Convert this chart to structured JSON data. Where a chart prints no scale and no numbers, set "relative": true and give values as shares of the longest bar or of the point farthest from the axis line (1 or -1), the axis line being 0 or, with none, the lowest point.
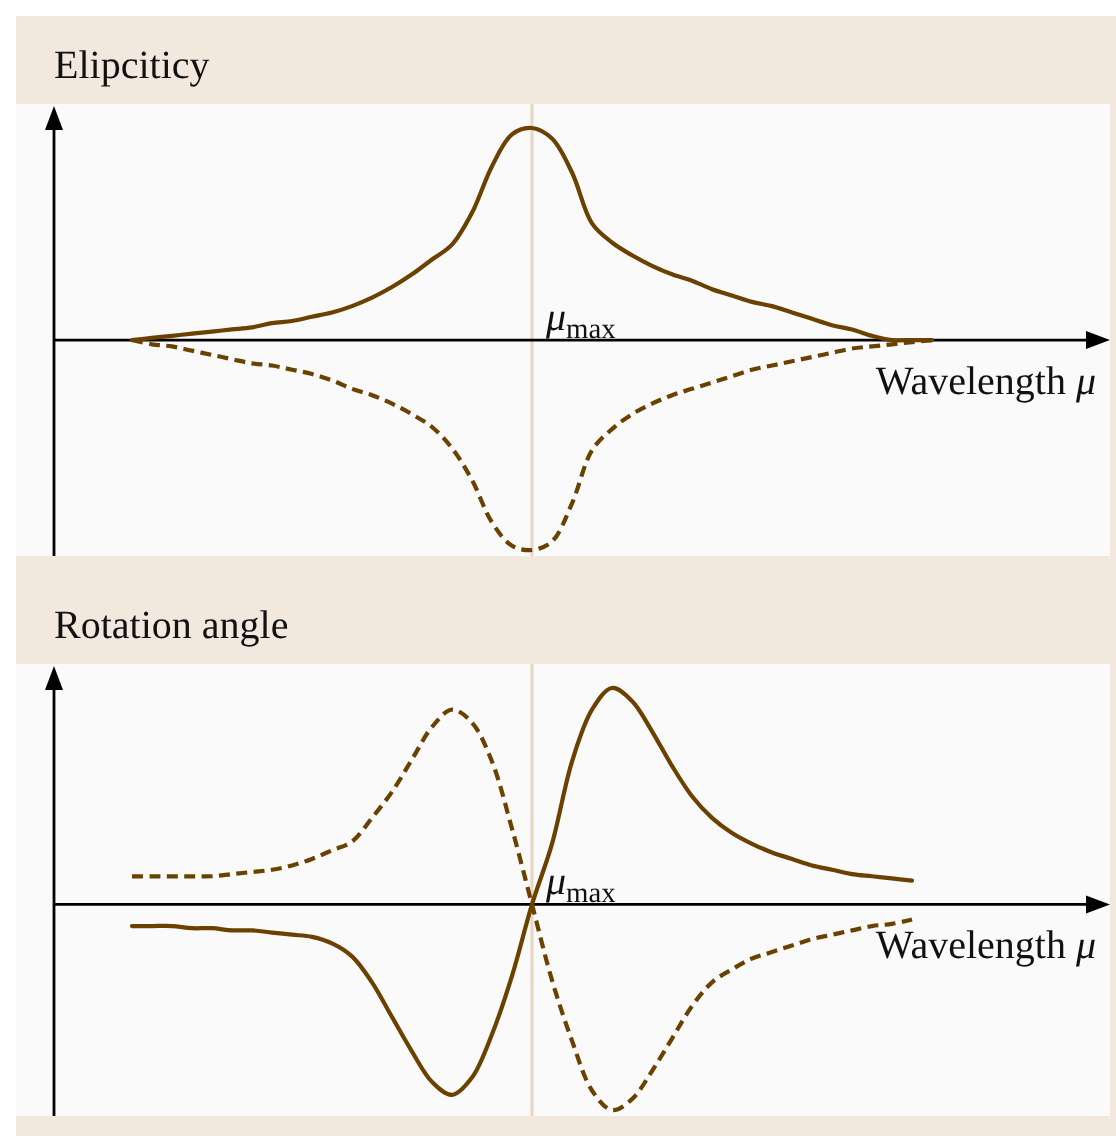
{
  "chart_data": [
    {
      "type": "line",
      "title": "Elipciticy",
      "xlabel": "Wavelength μ",
      "relative": true,
      "categories": [
        null,
        null,
        null,
        null,
        null,
        null,
        null,
        null,
        null,
        null,
        null,
        null,
        null,
        null,
        null,
        null,
        null,
        null,
        null,
        null,
        null,
        null,
        null,
        null,
        null,
        null,
        null,
        null,
        null,
        null,
        null,
        null,
        null,
        null,
        null,
        null,
        null,
        null,
        null,
        null,
        null
      ],
      "series": [
        {
          "color": "#6b4100",
          "line_style": "solid",
          "values": [
            0,
            0.01,
            0.02,
            0.03,
            0.04,
            0.05,
            0.06,
            0.08,
            0.09,
            0.11,
            0.13,
            0.16,
            0.2,
            0.25,
            0.31,
            0.38,
            0.45,
            0.6,
            0.82,
            0.97,
            1,
            0.95,
            0.79,
            0.55,
            0.46,
            0.4,
            0.35,
            0.31,
            0.28,
            0.24,
            0.21,
            0.18,
            0.16,
            0.13,
            0.1,
            0.07,
            0.05,
            0.02,
            0,
            0,
            0
          ]
        },
        {
          "color": "#6b4100",
          "line_style": "dashed",
          "values": [
            0,
            -0.02,
            -0.03,
            -0.05,
            -0.07,
            -0.09,
            -0.11,
            -0.12,
            -0.14,
            -0.16,
            -0.19,
            -0.23,
            -0.26,
            -0.3,
            -0.35,
            -0.41,
            -0.51,
            -0.66,
            -0.86,
            -0.97,
            -0.99,
            -0.95,
            -0.77,
            -0.52,
            -0.42,
            -0.35,
            -0.3,
            -0.26,
            -0.23,
            -0.2,
            -0.17,
            -0.14,
            -0.12,
            -0.1,
            -0.08,
            -0.06,
            -0.04,
            -0.03,
            -0.02,
            -0.01,
            0
          ]
        }
      ],
      "annotations": [
        "μ$_{max}$"
      ]
    },
    {
      "type": "line",
      "title": "Rotation angle",
      "xlabel": "Wavelength μ",
      "relative": true,
      "categories": [
        null,
        null,
        null,
        null,
        null,
        null,
        null,
        null,
        null,
        null,
        null,
        null,
        null,
        null,
        null,
        null,
        null,
        null,
        null,
        null,
        null,
        null,
        null,
        null,
        null,
        null,
        null,
        null,
        null,
        null,
        null,
        null,
        null,
        null,
        null,
        null,
        null,
        null,
        null,
        null,
        null
      ],
      "series": [
        {
          "color": "#6b4100",
          "line_style": "solid",
          "values": [
            -0.1,
            -0.1,
            -0.1,
            -0.11,
            -0.11,
            -0.12,
            -0.12,
            -0.13,
            -0.14,
            -0.15,
            -0.18,
            -0.24,
            -0.36,
            -0.52,
            -0.68,
            -0.82,
            -0.88,
            -0.8,
            -0.6,
            -0.33,
            0,
            0.28,
            0.66,
            0.9,
            1,
            0.94,
            0.8,
            0.64,
            0.5,
            0.4,
            0.33,
            0.28,
            0.24,
            0.21,
            0.18,
            0.16,
            0.14,
            0.13,
            0.12,
            0.11,
            null
          ]
        },
        {
          "color": "#6b4100",
          "line_style": "dashed",
          "values": [
            0.13,
            0.13,
            0.13,
            0.13,
            0.13,
            0.14,
            0.15,
            0.16,
            0.18,
            0.21,
            0.25,
            0.29,
            0.4,
            0.52,
            0.67,
            0.82,
            0.9,
            0.84,
            0.66,
            0.35,
            0,
            -0.35,
            -0.63,
            -0.86,
            -0.95,
            -0.9,
            -0.77,
            -0.62,
            -0.47,
            -0.36,
            -0.3,
            -0.25,
            -0.22,
            -0.19,
            -0.16,
            -0.14,
            -0.12,
            -0.1,
            -0.09,
            -0.07,
            null
          ]
        }
      ],
      "annotations": [
        "μ$_{max}$"
      ]
    }
  ]
}
